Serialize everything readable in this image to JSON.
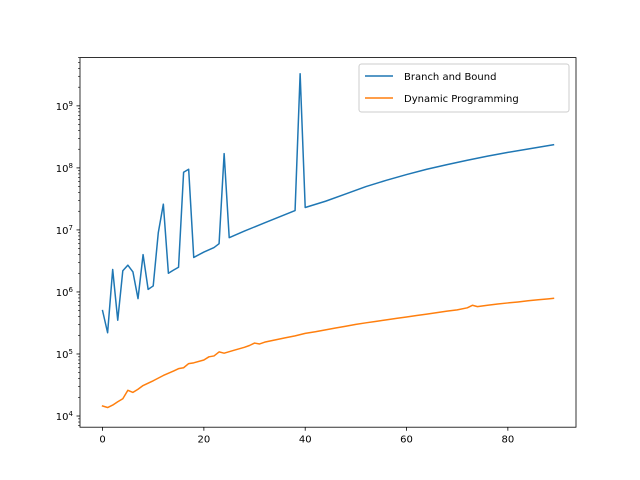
{
  "chart_data": {
    "type": "line",
    "title": "",
    "xlabel": "",
    "ylabel": "",
    "xlim": [
      -4.45,
      93.45
    ],
    "ylim": [
      6600,
      6000000000
    ],
    "yscale": "log",
    "grid": false,
    "legend_position": "upper right",
    "x_ticks": [
      {
        "value": 0,
        "label": "0"
      },
      {
        "value": 20,
        "label": "20"
      },
      {
        "value": 40,
        "label": "40"
      },
      {
        "value": 60,
        "label": "60"
      },
      {
        "value": 80,
        "label": "80"
      }
    ],
    "y_ticks": [
      {
        "value": 10000,
        "base": "10",
        "exp": "4"
      },
      {
        "value": 100000,
        "base": "10",
        "exp": "5"
      },
      {
        "value": 1000000,
        "base": "10",
        "exp": "6"
      },
      {
        "value": 10000000,
        "base": "10",
        "exp": "7"
      },
      {
        "value": 100000000,
        "base": "10",
        "exp": "8"
      },
      {
        "value": 1000000000,
        "base": "10",
        "exp": "9"
      }
    ],
    "series": [
      {
        "name": "Branch and Bound",
        "color": "#1f77b4",
        "points": [
          [
            0,
            500000
          ],
          [
            1,
            220000
          ],
          [
            2,
            2300000
          ],
          [
            3,
            350000
          ],
          [
            4,
            2200000
          ],
          [
            5,
            2700000
          ],
          [
            6,
            2100000
          ],
          [
            7,
            780000
          ],
          [
            8,
            4000000
          ],
          [
            9,
            1100000
          ],
          [
            10,
            1250000
          ],
          [
            11,
            9000000
          ],
          [
            12,
            26000000
          ],
          [
            13,
            2000000
          ],
          [
            14,
            2250000
          ],
          [
            15,
            2500000
          ],
          [
            16,
            85000000
          ],
          [
            17,
            95000000
          ],
          [
            18,
            3600000
          ],
          [
            20,
            4400000
          ],
          [
            22,
            5200000
          ],
          [
            23,
            6000000
          ],
          [
            24,
            170000000
          ],
          [
            25,
            7500000
          ],
          [
            28,
            9600000
          ],
          [
            32,
            13000000
          ],
          [
            38,
            20500000
          ],
          [
            39,
            3300000000
          ],
          [
            40,
            23000000
          ],
          [
            44,
            29000000
          ],
          [
            48,
            38000000
          ],
          [
            52,
            50000000
          ],
          [
            56,
            63000000
          ],
          [
            60,
            78000000
          ],
          [
            64,
            95000000
          ],
          [
            68,
            113000000
          ],
          [
            72,
            133000000
          ],
          [
            76,
            155000000
          ],
          [
            80,
            178000000
          ],
          [
            84,
            202000000
          ],
          [
            89,
            236000000
          ]
        ]
      },
      {
        "name": "Dynamic Programming",
        "color": "#ff7f0e",
        "points": [
          [
            0,
            14500
          ],
          [
            1,
            13700
          ],
          [
            2,
            15000
          ],
          [
            3,
            17000
          ],
          [
            4,
            19000
          ],
          [
            5,
            26000
          ],
          [
            6,
            24000
          ],
          [
            7,
            27000
          ],
          [
            8,
            31000
          ],
          [
            10,
            37000
          ],
          [
            12,
            45000
          ],
          [
            14,
            53000
          ],
          [
            15,
            58000
          ],
          [
            16,
            60000
          ],
          [
            17,
            70000
          ],
          [
            18,
            72000
          ],
          [
            20,
            80000
          ],
          [
            21,
            90000
          ],
          [
            22,
            93000
          ],
          [
            23,
            108000
          ],
          [
            24,
            103000
          ],
          [
            26,
            115000
          ],
          [
            28,
            128000
          ],
          [
            29,
            137000
          ],
          [
            30,
            150000
          ],
          [
            31,
            145000
          ],
          [
            32,
            155000
          ],
          [
            34,
            168000
          ],
          [
            36,
            182000
          ],
          [
            38,
            196000
          ],
          [
            40,
            215000
          ],
          [
            42,
            228000
          ],
          [
            44,
            245000
          ],
          [
            46,
            262000
          ],
          [
            48,
            280000
          ],
          [
            50,
            300000
          ],
          [
            52,
            318000
          ],
          [
            54,
            336000
          ],
          [
            56,
            355000
          ],
          [
            58,
            375000
          ],
          [
            60,
            395000
          ],
          [
            62,
            418000
          ],
          [
            64,
            440000
          ],
          [
            66,
            465000
          ],
          [
            68,
            490000
          ],
          [
            70,
            515000
          ],
          [
            72,
            555000
          ],
          [
            73,
            610000
          ],
          [
            74,
            580000
          ],
          [
            76,
            610000
          ],
          [
            78,
            640000
          ],
          [
            80,
            665000
          ],
          [
            82,
            690000
          ],
          [
            84,
            720000
          ],
          [
            86,
            748000
          ],
          [
            88,
            775000
          ],
          [
            89,
            790000
          ]
        ]
      }
    ]
  }
}
